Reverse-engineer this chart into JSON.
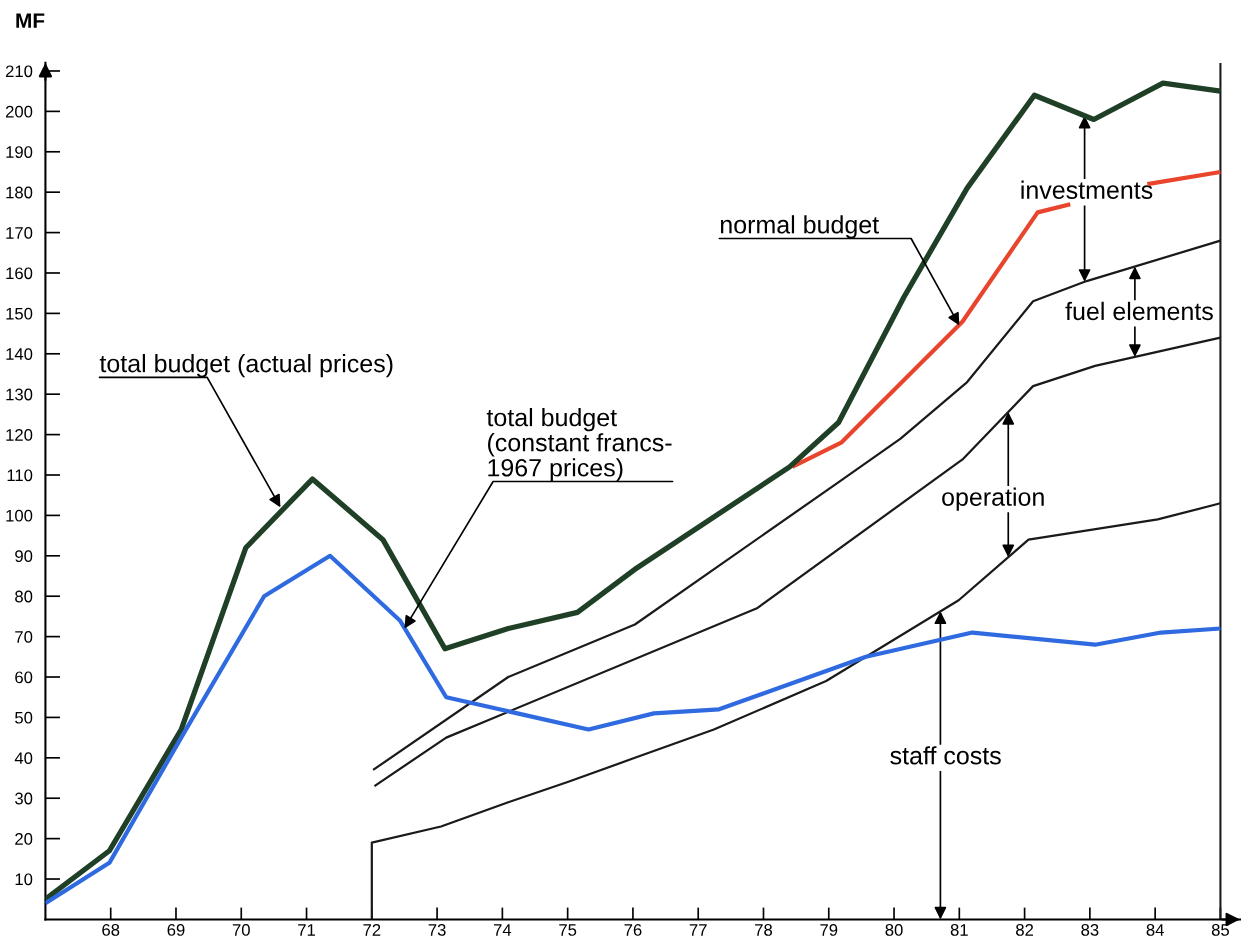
{
  "chart_data": {
    "type": "line",
    "ylabel": "MF",
    "xlim": [
      67,
      85.3
    ],
    "ylim": [
      0,
      212
    ],
    "xticks": [
      68,
      69,
      70,
      71,
      72,
      73,
      74,
      75,
      76,
      77,
      78,
      79,
      80,
      81,
      82,
      83,
      84,
      85
    ],
    "yticks": [
      10,
      20,
      30,
      40,
      50,
      60,
      70,
      80,
      90,
      100,
      110,
      120,
      130,
      140,
      150,
      160,
      170,
      180,
      190,
      200,
      210
    ],
    "line_style": "solid",
    "series": [
      {
        "color": "#1f4026",
        "x": [
          67,
          67.98,
          69.08,
          70.07,
          71.09,
          72.17,
          73.12,
          74.09,
          75.15,
          76.06,
          78.4,
          79.15,
          80.15,
          81.12,
          82.15,
          83.06,
          84.12,
          85
        ],
        "values": [
          5,
          17,
          47,
          92,
          109,
          94,
          67,
          72,
          76,
          87,
          112,
          123,
          154,
          181,
          204,
          198,
          207,
          205
        ]
      },
      {
        "color": "#e8452c",
        "x": [
          78.44,
          79.19,
          81.05,
          82.2,
          82.7,
          83.3,
          83.88,
          85
        ],
        "values": [
          112,
          118,
          148,
          175,
          177,
          null,
          182,
          185
        ]
      },
      {
        "color": "#2f6ae0",
        "x": [
          67,
          67.98,
          69.08,
          70.35,
          71.36,
          72.43,
          73.14,
          75.32,
          76.32,
          77.32,
          79.57,
          81.2,
          83.08,
          84.09,
          85
        ],
        "values": [
          4,
          14,
          45,
          80,
          90,
          74,
          55,
          47,
          51,
          52,
          65,
          71,
          68,
          71,
          72
        ]
      },
      {
        "color": "#1a1a1a",
        "x": [
          72.02,
          74.09,
          76.03,
          79.13,
          80.1,
          81.12,
          82.13,
          82.95,
          85
        ],
        "values": [
          37,
          60,
          73,
          108,
          119,
          133,
          153,
          158,
          168
        ]
      },
      {
        "color": "#1a1a1a",
        "x": [
          72.04,
          73.14,
          77.9,
          81.06,
          82.13,
          83.08,
          85
        ],
        "values": [
          33,
          45,
          77,
          114,
          132,
          137,
          144
        ]
      },
      {
        "color": "#1a1a1a",
        "x": [
          72,
          72,
          73.06,
          74.09,
          75,
          76.03,
          77.24,
          78.96,
          80.99,
          82.06,
          84.04,
          85
        ],
        "values": [
          0,
          19,
          23,
          29,
          34,
          40,
          47,
          59,
          79,
          94,
          99,
          103
        ]
      }
    ],
    "ref_lines": [
      {
        "axis": "x",
        "value": 85,
        "color": "#1a1a1a"
      }
    ],
    "annotations": [
      {
        "text": "total budget (actual prices)",
        "x": 70.6,
        "y": 102
      },
      {
        "text": "total budget\n(constant francs-\n1967 prices)",
        "x": 72.5,
        "y": 72
      },
      {
        "text": "normal budget",
        "x": 81.0,
        "y": 147
      },
      "investments",
      "fuel elements",
      "operation",
      "staff costs"
    ]
  }
}
